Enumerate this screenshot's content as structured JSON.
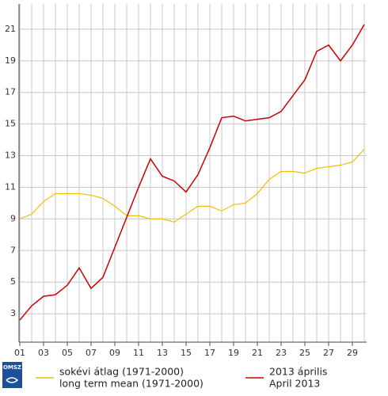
{
  "chart_data": {
    "type": "line",
    "logo": "OMSZ",
    "x": [
      1,
      2,
      3,
      4,
      5,
      6,
      7,
      8,
      9,
      10,
      11,
      12,
      13,
      14,
      15,
      16,
      17,
      18,
      19,
      20,
      21,
      22,
      23,
      24,
      25,
      26,
      27,
      28,
      29,
      30
    ],
    "xlim": [
      1,
      30
    ],
    "xticks": [
      {
        "value": 1,
        "label": "01"
      },
      {
        "value": 3,
        "label": "03"
      },
      {
        "value": 5,
        "label": "05"
      },
      {
        "value": 7,
        "label": "07"
      },
      {
        "value": 9,
        "label": "09"
      },
      11,
      13,
      15,
      17,
      19,
      21,
      23,
      25,
      27,
      29
    ],
    "ylim": [
      1.2,
      22.6
    ],
    "yticks": [
      3,
      5,
      7,
      9,
      11,
      13,
      15,
      17,
      19,
      21
    ],
    "grid": true,
    "series": [
      {
        "name": "sokévi átlag (1971-2000)",
        "name_en": "long term mean (1971-2000)",
        "color": "#f0c000",
        "values": [
          9.0,
          9.3,
          10.1,
          10.6,
          10.6,
          10.6,
          10.5,
          10.3,
          9.8,
          9.2,
          9.2,
          9.0,
          9.0,
          8.8,
          9.3,
          9.8,
          9.8,
          9.5,
          9.9,
          10.0,
          10.6,
          11.5,
          12.0,
          12.0,
          11.9,
          12.2,
          12.3,
          12.4,
          12.6,
          13.4
        ]
      },
      {
        "name": "2013 április",
        "name_en": "April 2013",
        "color": "#cc0000",
        "values": [
          2.6,
          3.5,
          4.1,
          4.2,
          4.8,
          5.9,
          4.6,
          5.3,
          7.2,
          9.1,
          11.0,
          12.8,
          11.7,
          11.4,
          10.7,
          11.8,
          13.5,
          15.4,
          15.5,
          15.2,
          15.3,
          15.4,
          15.8,
          16.8,
          17.8,
          19.6,
          20.0,
          19.0,
          20.0,
          21.3
        ]
      }
    ]
  }
}
